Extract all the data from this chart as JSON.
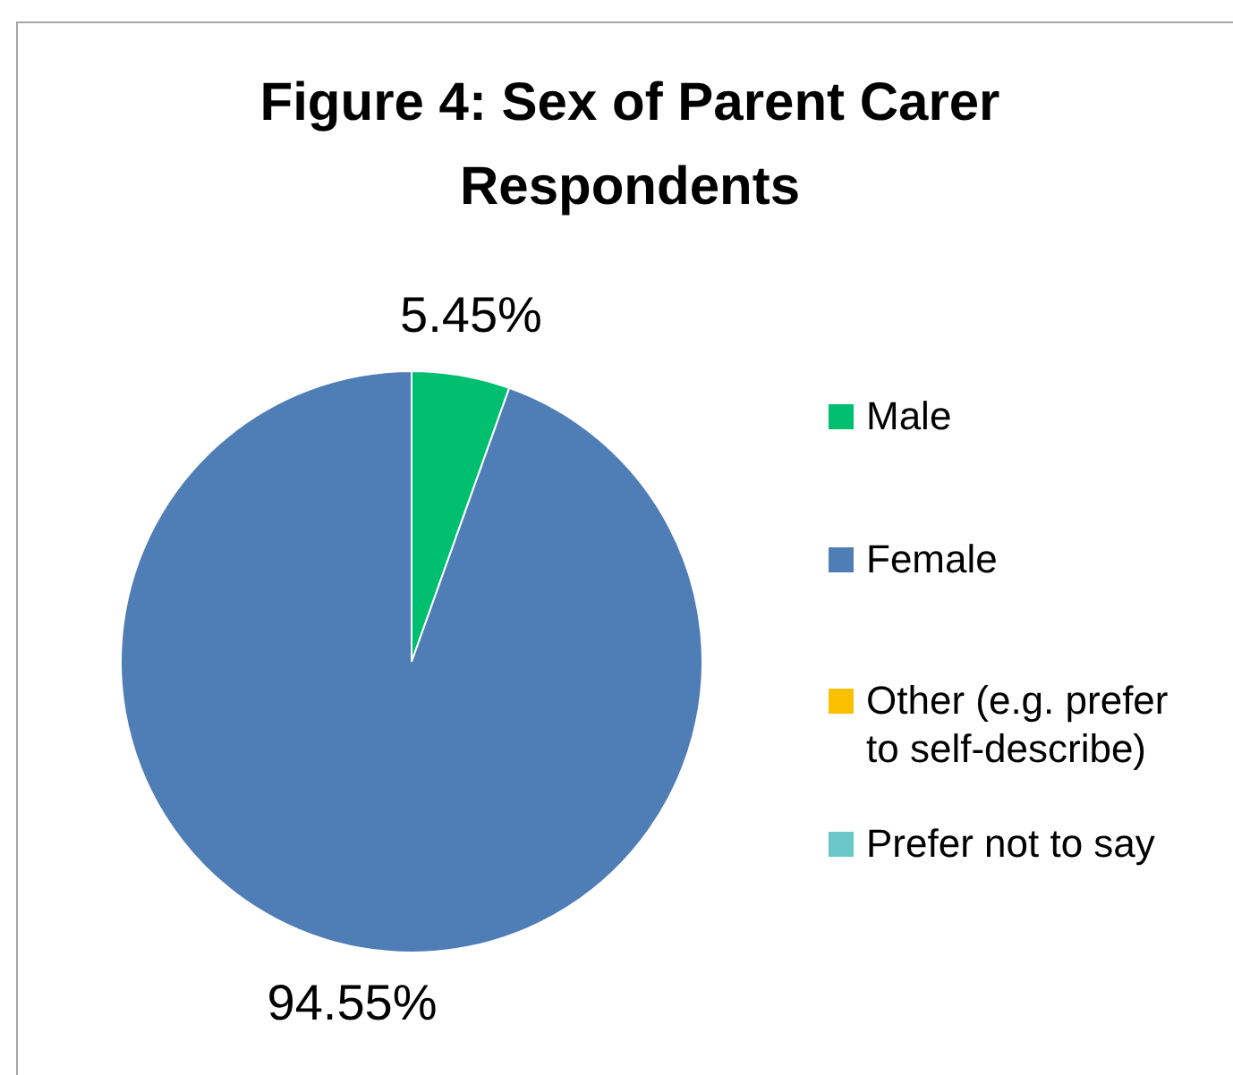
{
  "chart_data": {
    "type": "pie",
    "title": "Figure 4: Sex of Parent Carer Respondents",
    "categories": [
      "Male",
      "Female",
      "Other (e.g. prefer to self-describe)",
      "Prefer not to say"
    ],
    "values": [
      5.45,
      94.55,
      0,
      0
    ],
    "colors": [
      "#00bf6f",
      "#4f7db6",
      "#fbc000",
      "#6cc8c8"
    ],
    "value_labels": [
      "5.45%",
      "94.55%",
      null,
      null
    ],
    "legend": "right"
  }
}
